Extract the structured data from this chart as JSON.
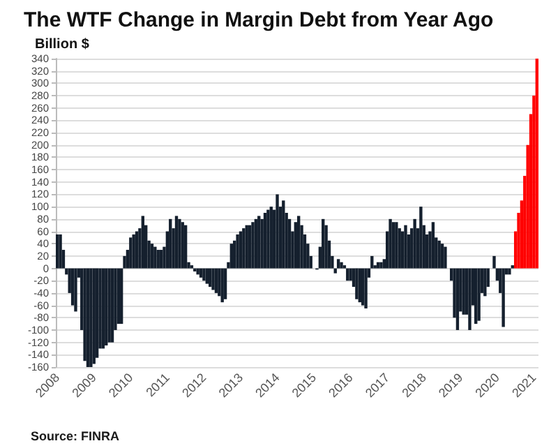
{
  "chart_data": {
    "type": "bar",
    "title": "The WTF Change in Margin Debt from Year Ago",
    "ylabel": "Billion $",
    "annotations": [
      "Source: FINRA"
    ],
    "categories": [
      "2008",
      null,
      null,
      null,
      null,
      null,
      null,
      null,
      null,
      null,
      null,
      null,
      "2009",
      null,
      null,
      null,
      null,
      null,
      null,
      null,
      null,
      null,
      null,
      null,
      "2010",
      null,
      null,
      null,
      null,
      null,
      null,
      null,
      null,
      null,
      null,
      null,
      "2011",
      null,
      null,
      null,
      null,
      null,
      null,
      null,
      null,
      null,
      null,
      null,
      "2012",
      null,
      null,
      null,
      null,
      null,
      null,
      null,
      null,
      null,
      null,
      null,
      "2013",
      null,
      null,
      null,
      null,
      null,
      null,
      null,
      null,
      null,
      null,
      null,
      "2014",
      null,
      null,
      null,
      null,
      null,
      null,
      null,
      null,
      null,
      null,
      null,
      "2015",
      null,
      null,
      null,
      null,
      null,
      null,
      null,
      null,
      null,
      null,
      null,
      "2016",
      null,
      null,
      null,
      null,
      null,
      null,
      null,
      null,
      null,
      null,
      null,
      "2017",
      null,
      null,
      null,
      null,
      null,
      null,
      null,
      null,
      null,
      null,
      null,
      "2018",
      null,
      null,
      null,
      null,
      null,
      null,
      null,
      null,
      null,
      null,
      null,
      "2019",
      null,
      null,
      null,
      null,
      null,
      null,
      null,
      null,
      null,
      null,
      null,
      "2020",
      null,
      null,
      null,
      null,
      null,
      null,
      null,
      null,
      null,
      null,
      null,
      "2021",
      null
    ],
    "values": [
      55,
      55,
      30,
      -10,
      -40,
      -60,
      -70,
      -15,
      -100,
      -150,
      -160,
      -160,
      -155,
      -145,
      -130,
      -130,
      -125,
      -120,
      -120,
      -100,
      -90,
      -90,
      20,
      30,
      50,
      55,
      60,
      65,
      85,
      70,
      45,
      40,
      35,
      30,
      30,
      35,
      60,
      80,
      65,
      85,
      80,
      75,
      70,
      10,
      5,
      -5,
      -10,
      -15,
      -20,
      -25,
      -30,
      -35,
      -40,
      -45,
      -55,
      -50,
      10,
      40,
      45,
      55,
      60,
      65,
      70,
      70,
      75,
      80,
      85,
      80,
      90,
      95,
      100,
      95,
      120,
      100,
      110,
      90,
      80,
      60,
      75,
      85,
      70,
      55,
      40,
      20,
      0,
      -2,
      35,
      80,
      70,
      45,
      20,
      -8,
      15,
      10,
      5,
      -20,
      -20,
      -30,
      -50,
      -55,
      -60,
      -65,
      -15,
      20,
      5,
      10,
      10,
      15,
      60,
      80,
      75,
      75,
      65,
      60,
      70,
      55,
      65,
      80,
      65,
      100,
      70,
      55,
      60,
      75,
      50,
      45,
      40,
      35,
      0,
      -20,
      -80,
      -100,
      -70,
      -75,
      -75,
      -100,
      -60,
      -90,
      -85,
      -40,
      -45,
      -30,
      0,
      20,
      -20,
      -40,
      -95,
      -10,
      -10,
      5,
      60,
      90,
      110,
      150,
      200,
      250,
      280,
      340
    ],
    "colors": [
      "#15202e",
      "#15202e",
      "#15202e",
      "#15202e",
      "#15202e",
      "#15202e",
      "#15202e",
      "#15202e",
      "#15202e",
      "#15202e",
      "#15202e",
      "#15202e",
      "#15202e",
      "#15202e",
      "#15202e",
      "#15202e",
      "#15202e",
      "#15202e",
      "#15202e",
      "#15202e",
      "#15202e",
      "#15202e",
      "#15202e",
      "#15202e",
      "#15202e",
      "#15202e",
      "#15202e",
      "#15202e",
      "#15202e",
      "#15202e",
      "#15202e",
      "#15202e",
      "#15202e",
      "#15202e",
      "#15202e",
      "#15202e",
      "#15202e",
      "#15202e",
      "#15202e",
      "#15202e",
      "#15202e",
      "#15202e",
      "#15202e",
      "#15202e",
      "#15202e",
      "#15202e",
      "#15202e",
      "#15202e",
      "#15202e",
      "#15202e",
      "#15202e",
      "#15202e",
      "#15202e",
      "#15202e",
      "#15202e",
      "#15202e",
      "#15202e",
      "#15202e",
      "#15202e",
      "#15202e",
      "#15202e",
      "#15202e",
      "#15202e",
      "#15202e",
      "#15202e",
      "#15202e",
      "#15202e",
      "#15202e",
      "#15202e",
      "#15202e",
      "#15202e",
      "#15202e",
      "#15202e",
      "#15202e",
      "#15202e",
      "#15202e",
      "#15202e",
      "#15202e",
      "#15202e",
      "#15202e",
      "#15202e",
      "#15202e",
      "#15202e",
      "#15202e",
      "#15202e",
      "#15202e",
      "#15202e",
      "#15202e",
      "#15202e",
      "#15202e",
      "#15202e",
      "#15202e",
      "#15202e",
      "#15202e",
      "#15202e",
      "#15202e",
      "#15202e",
      "#15202e",
      "#15202e",
      "#15202e",
      "#15202e",
      "#15202e",
      "#15202e",
      "#15202e",
      "#15202e",
      "#15202e",
      "#15202e",
      "#15202e",
      "#15202e",
      "#15202e",
      "#15202e",
      "#15202e",
      "#15202e",
      "#15202e",
      "#15202e",
      "#15202e",
      "#15202e",
      "#15202e",
      "#15202e",
      "#15202e",
      "#15202e",
      "#15202e",
      "#15202e",
      "#15202e",
      "#15202e",
      "#15202e",
      "#15202e",
      "#15202e",
      "#15202e",
      "#15202e",
      "#15202e",
      "#15202e",
      "#15202e",
      "#15202e",
      "#15202e",
      "#15202e",
      "#15202e",
      "#15202e",
      "#15202e",
      "#15202e",
      "#15202e",
      "#15202e",
      "#15202e",
      "#15202e",
      "#15202e",
      "#15202e",
      "#15202e",
      "#15202e",
      "#15202e",
      "#15202e",
      "#ff0000",
      "#ff0000",
      "#ff0000",
      "#ff0000",
      "#ff0000",
      "#ff0000",
      "#ff0000",
      "#ff0000"
    ],
    "ylim": [
      -160,
      340
    ],
    "yticks": [
      -160,
      -140,
      -120,
      -100,
      -80,
      -60,
      -40,
      -20,
      0,
      20,
      40,
      60,
      80,
      100,
      120,
      140,
      160,
      180,
      200,
      220,
      240,
      260,
      280,
      300,
      320,
      340
    ],
    "grid": "y"
  }
}
